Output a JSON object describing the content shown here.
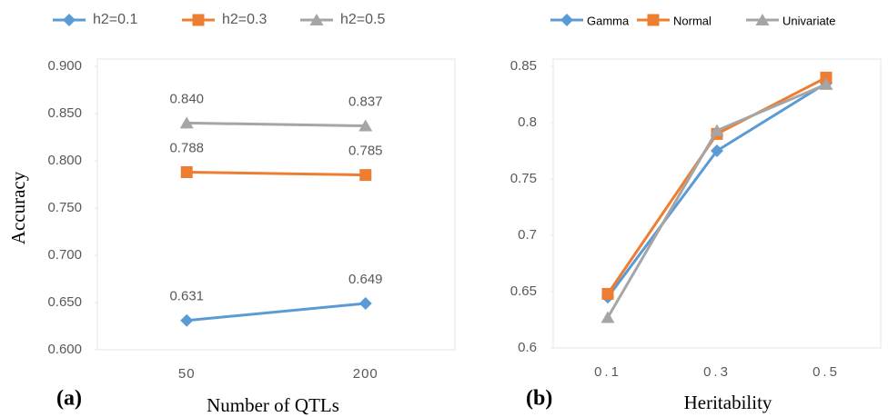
{
  "chart_data": [
    {
      "type": "line",
      "panel_label": "(a)",
      "y_label": "Accuracy",
      "x_label": "Number of QTLs",
      "categories": [
        "50",
        "200"
      ],
      "ylim": [
        0.6,
        0.9
      ],
      "yticks": [
        {
          "value": 0.6,
          "label": "0.600"
        },
        {
          "value": 0.65,
          "label": "0.650"
        },
        {
          "value": 0.7,
          "label": "0.700"
        },
        {
          "value": 0.75,
          "label": "0.750"
        },
        {
          "value": 0.8,
          "label": "0.800"
        },
        {
          "value": 0.85,
          "label": "0.850"
        },
        {
          "value": 0.9,
          "label": "0.900"
        }
      ],
      "series": [
        {
          "name": "h2=0.1",
          "color": "#5b9bd5",
          "marker": "diamond",
          "values": [
            0.631,
            0.649
          ],
          "value_labels": [
            "0.631",
            "0.649"
          ]
        },
        {
          "name": "h2=0.3",
          "color": "#ed7d31",
          "marker": "square",
          "values": [
            0.788,
            0.785
          ],
          "value_labels": [
            "0.788",
            "0.785"
          ]
        },
        {
          "name": "h2=0.5",
          "color": "#a5a5a5",
          "marker": "triangle",
          "values": [
            0.84,
            0.837
          ],
          "value_labels": [
            "0.840",
            "0.837"
          ]
        }
      ]
    },
    {
      "type": "line",
      "panel_label": "(b)",
      "x_label": "Heritability",
      "categories": [
        "0.1",
        "0.3",
        "0.5"
      ],
      "ylim": [
        0.6,
        0.85
      ],
      "yticks": [
        0.6,
        0.65,
        0.7,
        0.75,
        0.8,
        0.85
      ],
      "series": [
        {
          "name": "Gamma",
          "color": "#5b9bd5",
          "marker": "diamond",
          "values": [
            0.645,
            0.775,
            0.835
          ]
        },
        {
          "name": "Normal",
          "color": "#ed7d31",
          "marker": "square",
          "values": [
            0.648,
            0.79,
            0.84
          ]
        },
        {
          "name": "Univariate",
          "color": "#a5a5a5",
          "marker": "triangle",
          "values": [
            0.627,
            0.793,
            0.834
          ]
        }
      ]
    }
  ]
}
